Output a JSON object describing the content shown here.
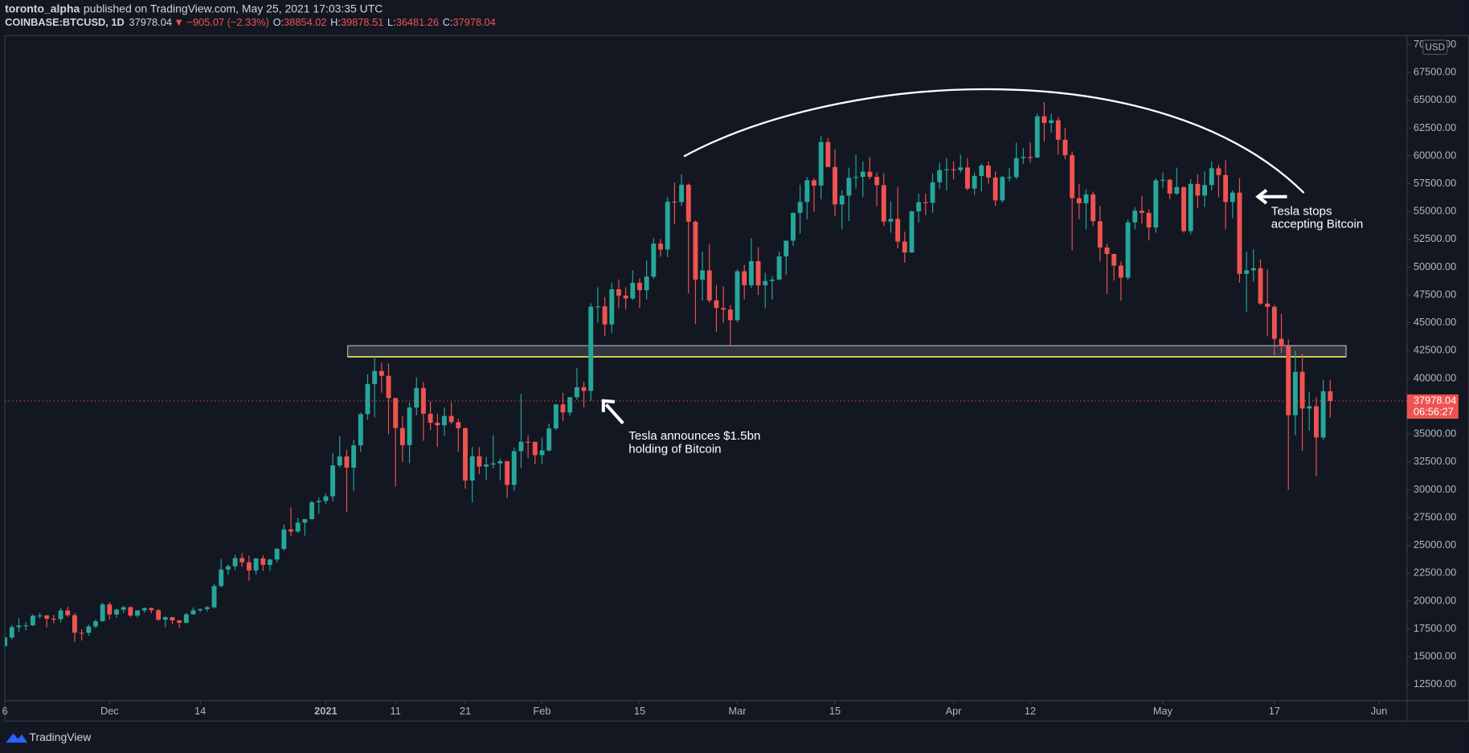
{
  "header": {
    "author": "toronto_alpha",
    "published": "published on TradingView.com, May 25, 2021 17:03:35 UTC",
    "symbol": "COINBASE:BTCUSD, 1D",
    "price": "37978.04",
    "change": "▼ −905.07 (−2.33%)",
    "quote": [
      {
        "label": "O:",
        "value": "38854.02"
      },
      {
        "label": "H:",
        "value": "39878.51"
      },
      {
        "label": "L:",
        "value": "36481.26"
      },
      {
        "label": "C:",
        "value": "37978.04"
      }
    ]
  },
  "chart_data": {
    "type": "candlestick",
    "up_color": "#26a69a",
    "down_color": "#ef5350",
    "grid": false,
    "currency": "USD",
    "last_price_label": "37978.04",
    "countdown": "06:56:27",
    "zone": {
      "low": 41950,
      "high": 42950
    },
    "annotations": [
      "Tesla announces $1.5bn",
      "holding of Bitcoin",
      "Tesla stops",
      "accepting Bitcoin"
    ],
    "xlim": [
      0,
      201
    ],
    "xticks": [
      {
        "value": 0,
        "label": "6"
      },
      {
        "value": 15,
        "label": "Dec"
      },
      {
        "value": 28,
        "label": "14"
      },
      {
        "value": 46,
        "label": "2021"
      },
      {
        "value": 56,
        "label": "11"
      },
      {
        "value": 66,
        "label": "21"
      },
      {
        "value": 77,
        "label": "Feb"
      },
      {
        "value": 91,
        "label": "15"
      },
      {
        "value": 105,
        "label": "Mar"
      },
      {
        "value": 119,
        "label": "15"
      },
      {
        "value": 136,
        "label": "Apr"
      },
      {
        "value": 147,
        "label": "12"
      },
      {
        "value": 166,
        "label": "May"
      },
      {
        "value": 182,
        "label": "17"
      },
      {
        "value": 197,
        "label": "Jun"
      }
    ],
    "ylim": [
      11060,
      70810
    ],
    "yticks": [
      {
        "value": 12500,
        "label": "12500.00"
      },
      {
        "value": 15000,
        "label": "15000.00"
      },
      {
        "value": 17500,
        "label": "17500.00"
      },
      {
        "value": 20000,
        "label": "20000.00"
      },
      {
        "value": 22500,
        "label": "22500.00"
      },
      {
        "value": 25000,
        "label": "25000.00"
      },
      {
        "value": 27500,
        "label": "27500.00"
      },
      {
        "value": 30000,
        "label": "30000.00"
      },
      {
        "value": 32500,
        "label": "32500.00"
      },
      {
        "value": 35000,
        "label": "35000.00"
      },
      {
        "value": 37500,
        "label": "37500.00"
      },
      {
        "value": 40000,
        "label": "40000.00"
      },
      {
        "value": 42500,
        "label": "42500.00"
      },
      {
        "value": 45000,
        "label": "45000.00"
      },
      {
        "value": 47500,
        "label": "47500.00"
      },
      {
        "value": 50000,
        "label": "50000.00"
      },
      {
        "value": 52500,
        "label": "52500.00"
      },
      {
        "value": 55000,
        "label": "55000.00"
      },
      {
        "value": 57500,
        "label": "57500.00"
      },
      {
        "value": 60000,
        "label": "60000.00"
      },
      {
        "value": 62500,
        "label": "62500.00"
      },
      {
        "value": 65000,
        "label": "65000.00"
      },
      {
        "value": 67500,
        "label": "67500.00"
      },
      {
        "value": 70000,
        "label": "70000.00"
      }
    ],
    "ohlc": [
      [
        15960,
        16880,
        15870,
        16720
      ],
      [
        16720,
        17860,
        16560,
        17660
      ],
      [
        17660,
        18480,
        17220,
        17800
      ],
      [
        17800,
        18140,
        17350,
        17820
      ],
      [
        17820,
        18810,
        17760,
        18680
      ],
      [
        18680,
        18960,
        18440,
        18710
      ],
      [
        18710,
        18750,
        17620,
        18420
      ],
      [
        18420,
        18770,
        18010,
        18370
      ],
      [
        18370,
        19410,
        18080,
        19160
      ],
      [
        19160,
        19490,
        18570,
        18730
      ],
      [
        18730,
        18920,
        16330,
        17150
      ],
      [
        17150,
        17460,
        16460,
        17140
      ],
      [
        17140,
        17880,
        16880,
        17720
      ],
      [
        17720,
        18350,
        17560,
        18180
      ],
      [
        18180,
        19860,
        18180,
        19700
      ],
      [
        19700,
        19920,
        18330,
        18790
      ],
      [
        18790,
        19310,
        18500,
        19230
      ],
      [
        19230,
        19570,
        18940,
        19450
      ],
      [
        19450,
        19530,
        18570,
        18700
      ],
      [
        18700,
        19180,
        18510,
        19160
      ],
      [
        19160,
        19420,
        18940,
        19370
      ],
      [
        19370,
        19420,
        18910,
        19180
      ],
      [
        19180,
        19300,
        18210,
        18320
      ],
      [
        18320,
        18650,
        17650,
        18550
      ],
      [
        18550,
        18570,
        17920,
        18260
      ],
      [
        18260,
        18290,
        17570,
        18040
      ],
      [
        18040,
        18950,
        18020,
        18810
      ],
      [
        18810,
        19430,
        18770,
        19170
      ],
      [
        19170,
        19340,
        19000,
        19280
      ],
      [
        19280,
        19560,
        19050,
        19440
      ],
      [
        19440,
        21560,
        19300,
        21350
      ],
      [
        21350,
        23800,
        21240,
        22830
      ],
      [
        22830,
        23280,
        22350,
        23130
      ],
      [
        23130,
        24170,
        22780,
        23860
      ],
      [
        23860,
        24300,
        23080,
        23480
      ],
      [
        23480,
        24100,
        21820,
        22750
      ],
      [
        22750,
        23860,
        22370,
        23830
      ],
      [
        23830,
        24110,
        22720,
        23250
      ],
      [
        23250,
        23800,
        22710,
        23730
      ],
      [
        23730,
        24790,
        23470,
        24690
      ],
      [
        24690,
        26870,
        24520,
        26440
      ],
      [
        26440,
        28420,
        25850,
        26250
      ],
      [
        26250,
        27480,
        26100,
        27040
      ],
      [
        27040,
        27380,
        25880,
        27360
      ],
      [
        27360,
        29020,
        27320,
        28880
      ],
      [
        28880,
        29300,
        27850,
        28990
      ],
      [
        28990,
        29680,
        28690,
        29410
      ],
      [
        29410,
        33300,
        28950,
        32190
      ],
      [
        32190,
        34800,
        32000,
        33000
      ],
      [
        33000,
        33600,
        28000,
        31990
      ],
      [
        31990,
        34500,
        29900,
        33990
      ],
      [
        33990,
        36940,
        33380,
        36800
      ],
      [
        36800,
        40370,
        36300,
        39500
      ],
      [
        39500,
        41950,
        36500,
        40670
      ],
      [
        40670,
        41380,
        38720,
        40240
      ],
      [
        40240,
        41350,
        35000,
        38240
      ],
      [
        38240,
        38240,
        30300,
        35540
      ],
      [
        35540,
        36600,
        32500,
        34010
      ],
      [
        34010,
        37850,
        32400,
        37390
      ],
      [
        37390,
        40100,
        36700,
        39150
      ],
      [
        39150,
        39700,
        34400,
        36830
      ],
      [
        36830,
        37950,
        35360,
        36020
      ],
      [
        36020,
        36850,
        33850,
        35790
      ],
      [
        35790,
        37400,
        34850,
        36630
      ],
      [
        36630,
        37850,
        35900,
        36070
      ],
      [
        36070,
        36400,
        33400,
        35530
      ],
      [
        35530,
        35600,
        30100,
        30830
      ],
      [
        30830,
        33850,
        28850,
        33010
      ],
      [
        33010,
        33830,
        31400,
        32080
      ],
      [
        32080,
        32950,
        30900,
        32270
      ],
      [
        32270,
        34880,
        31910,
        32370
      ],
      [
        32370,
        32800,
        30850,
        32570
      ],
      [
        32570,
        32570,
        29250,
        30440
      ],
      [
        30440,
        33800,
        29900,
        33470
      ],
      [
        33470,
        38600,
        31950,
        34320
      ],
      [
        34320,
        34900,
        32870,
        34300
      ],
      [
        34300,
        34340,
        32300,
        33110
      ],
      [
        33110,
        34700,
        32300,
        33530
      ],
      [
        33530,
        35950,
        33430,
        35510
      ],
      [
        35510,
        37660,
        35370,
        37670
      ],
      [
        37670,
        38700,
        36200,
        36950
      ],
      [
        36950,
        38300,
        36650,
        38320
      ],
      [
        38320,
        40950,
        38100,
        39220
      ],
      [
        39220,
        39700,
        37400,
        38880
      ],
      [
        38880,
        46750,
        37990,
        46450
      ],
      [
        46450,
        48200,
        45000,
        46480
      ],
      [
        46480,
        47310,
        43800,
        44850
      ],
      [
        44850,
        48600,
        44100,
        48010
      ],
      [
        48010,
        48900,
        46300,
        47450
      ],
      [
        47450,
        48200,
        46200,
        47190
      ],
      [
        47190,
        49700,
        47070,
        48600
      ],
      [
        48600,
        49000,
        46350,
        47930
      ],
      [
        47930,
        50600,
        47100,
        49150
      ],
      [
        49150,
        52600,
        48950,
        52120
      ],
      [
        52120,
        52550,
        50950,
        51590
      ],
      [
        51590,
        56300,
        50900,
        55890
      ],
      [
        55890,
        57600,
        53900,
        55850
      ],
      [
        55850,
        58350,
        55500,
        57410
      ],
      [
        57410,
        57520,
        47650,
        54090
      ],
      [
        54090,
        54190,
        44900,
        48880
      ],
      [
        48880,
        51400,
        47000,
        49710
      ],
      [
        49710,
        52100,
        46800,
        47020
      ],
      [
        47020,
        48400,
        44200,
        46340
      ],
      [
        46340,
        48300,
        45000,
        46190
      ],
      [
        46190,
        46600,
        43000,
        45240
      ],
      [
        45240,
        49800,
        45060,
        49630
      ],
      [
        49630,
        50200,
        47100,
        48380
      ],
      [
        48380,
        52600,
        48120,
        50540
      ],
      [
        50540,
        51800,
        47500,
        48370
      ],
      [
        48370,
        49500,
        46300,
        48760
      ],
      [
        48760,
        49200,
        47100,
        48880
      ],
      [
        48880,
        51400,
        48880,
        50970
      ],
      [
        50970,
        52400,
        49300,
        52380
      ],
      [
        52380,
        54900,
        51900,
        54880
      ],
      [
        54880,
        57400,
        53020,
        55860
      ],
      [
        55860,
        58100,
        54300,
        57810
      ],
      [
        57810,
        58000,
        55000,
        57330
      ],
      [
        57330,
        61800,
        56100,
        61240
      ],
      [
        61240,
        61600,
        59000,
        59000
      ],
      [
        59000,
        60600,
        54600,
        55640
      ],
      [
        55640,
        56900,
        53400,
        56430
      ],
      [
        56430,
        58950,
        54150,
        58030
      ],
      [
        58030,
        60100,
        57050,
        58110
      ],
      [
        58110,
        59500,
        56300,
        58580
      ],
      [
        58580,
        59900,
        57900,
        58120
      ],
      [
        58120,
        58500,
        55500,
        57370
      ],
      [
        57370,
        58450,
        53700,
        54090
      ],
      [
        54090,
        55900,
        53100,
        54340
      ],
      [
        54340,
        57200,
        51700,
        52300
      ],
      [
        52300,
        53200,
        50400,
        51320
      ],
      [
        51320,
        55100,
        51300,
        55010
      ],
      [
        55010,
        56600,
        54000,
        55840
      ],
      [
        55840,
        56600,
        54700,
        55780
      ],
      [
        55780,
        58400,
        54900,
        57630
      ],
      [
        57630,
        59400,
        57050,
        58730
      ],
      [
        58730,
        59800,
        56900,
        58800
      ],
      [
        58800,
        59500,
        57900,
        58730
      ],
      [
        58730,
        60100,
        58500,
        58960
      ],
      [
        58960,
        59800,
        56900,
        57060
      ],
      [
        57060,
        58500,
        56500,
        58200
      ],
      [
        58200,
        59300,
        56800,
        59130
      ],
      [
        59130,
        59500,
        57500,
        58060
      ],
      [
        58060,
        58600,
        55500,
        56000
      ],
      [
        56000,
        58200,
        55800,
        58100
      ],
      [
        58100,
        58900,
        57700,
        58100
      ],
      [
        58100,
        61200,
        57900,
        59800
      ],
      [
        59800,
        60700,
        59300,
        59900
      ],
      [
        59900,
        61200,
        59400,
        59850
      ],
      [
        59850,
        63800,
        59800,
        63560
      ],
      [
        63560,
        64850,
        61300,
        62960
      ],
      [
        62960,
        63800,
        62100,
        63200
      ],
      [
        63200,
        63500,
        60100,
        61450
      ],
      [
        61450,
        62500,
        59700,
        60060
      ],
      [
        60060,
        60400,
        51500,
        56200
      ],
      [
        56200,
        57500,
        54300,
        55740
      ],
      [
        55740,
        57000,
        53400,
        56540
      ],
      [
        56540,
        56800,
        53700,
        54130
      ],
      [
        54130,
        55500,
        50500,
        51770
      ],
      [
        51770,
        52100,
        47600,
        51190
      ],
      [
        51190,
        51200,
        48800,
        50140
      ],
      [
        50140,
        50500,
        47000,
        49060
      ],
      [
        49060,
        54300,
        48850,
        54020
      ],
      [
        54020,
        55400,
        53400,
        55070
      ],
      [
        55070,
        56400,
        53900,
        54880
      ],
      [
        54880,
        55200,
        52400,
        53570
      ],
      [
        53570,
        58000,
        53100,
        57800
      ],
      [
        57800,
        58500,
        57100,
        57850
      ],
      [
        57850,
        57950,
        56100,
        56610
      ],
      [
        56610,
        58950,
        56500,
        57200
      ],
      [
        57200,
        57250,
        53100,
        53240
      ],
      [
        53240,
        57900,
        52950,
        57480
      ],
      [
        57480,
        58350,
        55300,
        56440
      ],
      [
        56440,
        58600,
        55400,
        57380
      ],
      [
        57380,
        59500,
        56900,
        58890
      ],
      [
        58890,
        59200,
        56300,
        58280
      ],
      [
        58280,
        59600,
        53400,
        55860
      ],
      [
        55860,
        56900,
        54400,
        56700
      ],
      [
        56700,
        58000,
        48600,
        49400
      ],
      [
        49400,
        51400,
        46000,
        49720
      ],
      [
        49720,
        51600,
        48700,
        49910
      ],
      [
        49910,
        50700,
        46600,
        46730
      ],
      [
        46730,
        49800,
        43800,
        46440
      ],
      [
        46440,
        46600,
        42100,
        43560
      ],
      [
        43560,
        45800,
        42300,
        42900
      ],
      [
        42900,
        43500,
        30000,
        36700
      ],
      [
        36700,
        42500,
        34900,
        40600
      ],
      [
        40600,
        42200,
        33500,
        37300
      ],
      [
        37300,
        38800,
        35300,
        37500
      ],
      [
        37500,
        38300,
        31200,
        34700
      ],
      [
        34700,
        39900,
        34500,
        38854.02
      ],
      [
        38854.02,
        39878.51,
        36481.26,
        37978.04
      ]
    ]
  },
  "footer": {
    "brand": "TradingView"
  }
}
